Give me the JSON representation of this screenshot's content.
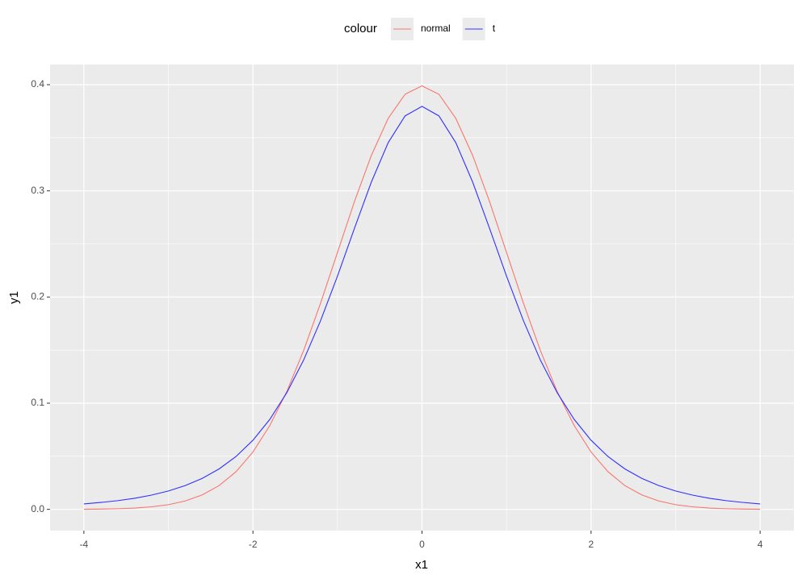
{
  "chart_data": {
    "type": "line",
    "x_label": "x1",
    "y_label": "y1",
    "legend_title": "colour",
    "x": [
      -4,
      -3.8,
      -3.6,
      -3.4,
      -3.2,
      -3,
      -2.8,
      -2.6,
      -2.4,
      -2.2,
      -2,
      -1.8,
      -1.6,
      -1.4,
      -1.2,
      -1,
      -0.8,
      -0.6,
      -0.4,
      -0.2,
      0,
      0.2,
      0.4,
      0.6,
      0.8,
      1,
      1.2,
      1.4,
      1.6,
      1.8,
      2,
      2.2,
      2.4,
      2.6,
      2.8,
      3,
      3.2,
      3.4,
      3.6,
      3.8,
      4
    ],
    "series": [
      {
        "name": "normal",
        "color": "#f8766d",
        "values": [
          0.0001,
          0.0003,
          0.0006,
          0.0012,
          0.0024,
          0.0044,
          0.0079,
          0.0136,
          0.0224,
          0.0355,
          0.054,
          0.079,
          0.1109,
          0.1497,
          0.1942,
          0.242,
          0.2897,
          0.3332,
          0.3683,
          0.391,
          0.3989,
          0.391,
          0.3683,
          0.3332,
          0.2897,
          0.242,
          0.1942,
          0.1497,
          0.1109,
          0.079,
          0.054,
          0.0355,
          0.0224,
          0.0136,
          0.0079,
          0.0044,
          0.0024,
          0.0012,
          0.0006,
          0.0003,
          0.0001
        ]
      },
      {
        "name": "t",
        "color": "#3030ff",
        "values": [
          0.0051,
          0.0065,
          0.0082,
          0.0104,
          0.0134,
          0.0173,
          0.0224,
          0.0292,
          0.0381,
          0.0498,
          0.0651,
          0.0848,
          0.1098,
          0.1407,
          0.1777,
          0.2197,
          0.2645,
          0.3081,
          0.3454,
          0.3706,
          0.3796,
          0.3706,
          0.3454,
          0.3081,
          0.2645,
          0.2197,
          0.1777,
          0.1407,
          0.1098,
          0.0848,
          0.0651,
          0.0498,
          0.0381,
          0.0292,
          0.0224,
          0.0173,
          0.0134,
          0.0104,
          0.0082,
          0.0065,
          0.0051
        ]
      }
    ],
    "xlim": [
      -4.4,
      4.4
    ],
    "xticks": [
      -4,
      -2,
      0,
      2,
      4
    ],
    "ylim": [
      -0.02,
      0.419
    ],
    "yticks": [
      {
        "value": 0,
        "label": "0.0"
      },
      0.1,
      0.2,
      0.3,
      0.4
    ],
    "grid": true,
    "legend_position": "top"
  }
}
